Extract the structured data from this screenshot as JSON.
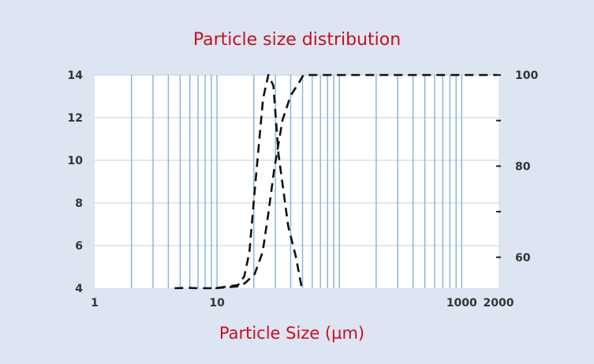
{
  "chart_data": {
    "type": "line",
    "title": "Particle size distribution",
    "xlabel": "Particle Size (µm)",
    "ylabel": "",
    "y2label": "",
    "xscale": "log",
    "xlim": [
      1,
      2000
    ],
    "ylim": [
      4,
      14
    ],
    "y2lim": [
      53.2,
      100
    ],
    "x_tick_labels": [
      {
        "value": 1,
        "label": "1"
      },
      {
        "value": 10,
        "label": "10"
      },
      {
        "value": 1000,
        "label": "1000"
      },
      {
        "value": 2000,
        "label": "2000"
      }
    ],
    "y_tick_labels": [
      {
        "value": 4,
        "label": "4"
      },
      {
        "value": 6,
        "label": "6"
      },
      {
        "value": 8,
        "label": "8"
      },
      {
        "value": 10,
        "label": "10"
      },
      {
        "value": 12,
        "label": "12"
      },
      {
        "value": 14,
        "label": "14"
      }
    ],
    "y2_tick_labels": [
      {
        "value": 60,
        "label": "60"
      },
      {
        "value": 80,
        "label": "80"
      },
      {
        "value": 100,
        "label": "100"
      }
    ],
    "y2_minor_ticks": [
      70,
      90
    ],
    "grid": "vertical log grid lines, horizontal lines at left-axis ticks",
    "grid_x": [
      2,
      3,
      4,
      5,
      6,
      7,
      8,
      9,
      10,
      20,
      30,
      40,
      50,
      60,
      70,
      80,
      90,
      100,
      200,
      300,
      400,
      500,
      600,
      700,
      800,
      900,
      1000
    ],
    "series": [
      {
        "axis": "left",
        "style": "dashed",
        "color": "#111111",
        "x": [
          4.5,
          5.7,
          6.9,
          7.4,
          9.7,
          14.9,
          16.7,
          18.4,
          20.3,
          23.8,
          26.3,
          28.9,
          31.8,
          38.2,
          44.0,
          49.3
        ],
        "y": [
          4.0,
          4.02,
          4.0,
          4.0,
          4.0,
          4.15,
          4.55,
          5.7,
          8.55,
          12.9,
          14.0,
          13.5,
          10.3,
          6.9,
          5.5,
          4.0
        ]
      },
      {
        "axis": "right",
        "style": "dashed",
        "color": "#111111",
        "x": [
          9.7,
          14.9,
          16.9,
          20.3,
          23.6,
          26.2,
          29.4,
          34.3,
          40.0,
          47.2,
          50.8,
          1000,
          2000
        ],
        "y": [
          53.2,
          53.6,
          54.3,
          56.3,
          61.1,
          69.4,
          79.4,
          90.1,
          95.5,
          98.5,
          100.0,
          100.0,
          100.0
        ]
      }
    ],
    "colors": {
      "background": "#dde5f2",
      "plot_area": "#ffffff",
      "vertical_grid": "#7eb5dc",
      "horizontal_grid": "#c8cdd6",
      "title": "#c8101e",
      "curve": "#111111"
    }
  }
}
